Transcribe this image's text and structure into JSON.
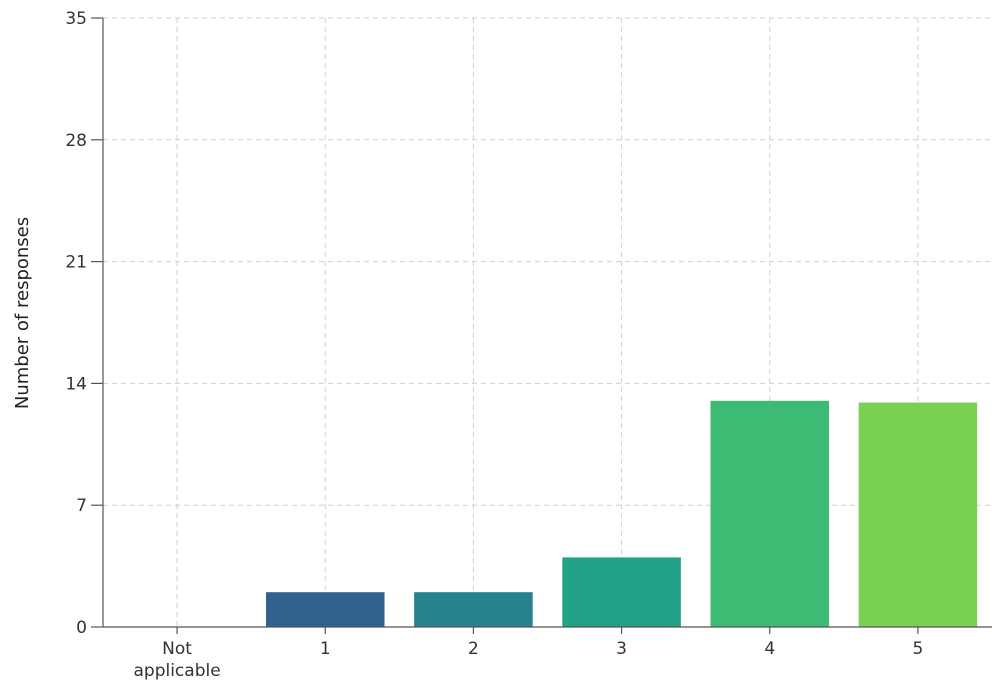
{
  "chart_data": {
    "type": "bar",
    "categories": [
      [
        "Not",
        "applicable"
      ],
      [
        "1"
      ],
      [
        "2"
      ],
      [
        "3"
      ],
      [
        "4"
      ],
      [
        "5"
      ]
    ],
    "values": [
      0,
      2,
      2,
      4,
      13,
      12.9
    ],
    "colors": [
      "#482878",
      "#31628d",
      "#26828e",
      "#22a187",
      "#3dbb74",
      "#79d151"
    ],
    "ylabel": "Number of responses",
    "xlabel": "",
    "ylim": [
      0,
      35
    ],
    "yticks": [
      0,
      7,
      14,
      21,
      28,
      35
    ],
    "grid": true
  }
}
